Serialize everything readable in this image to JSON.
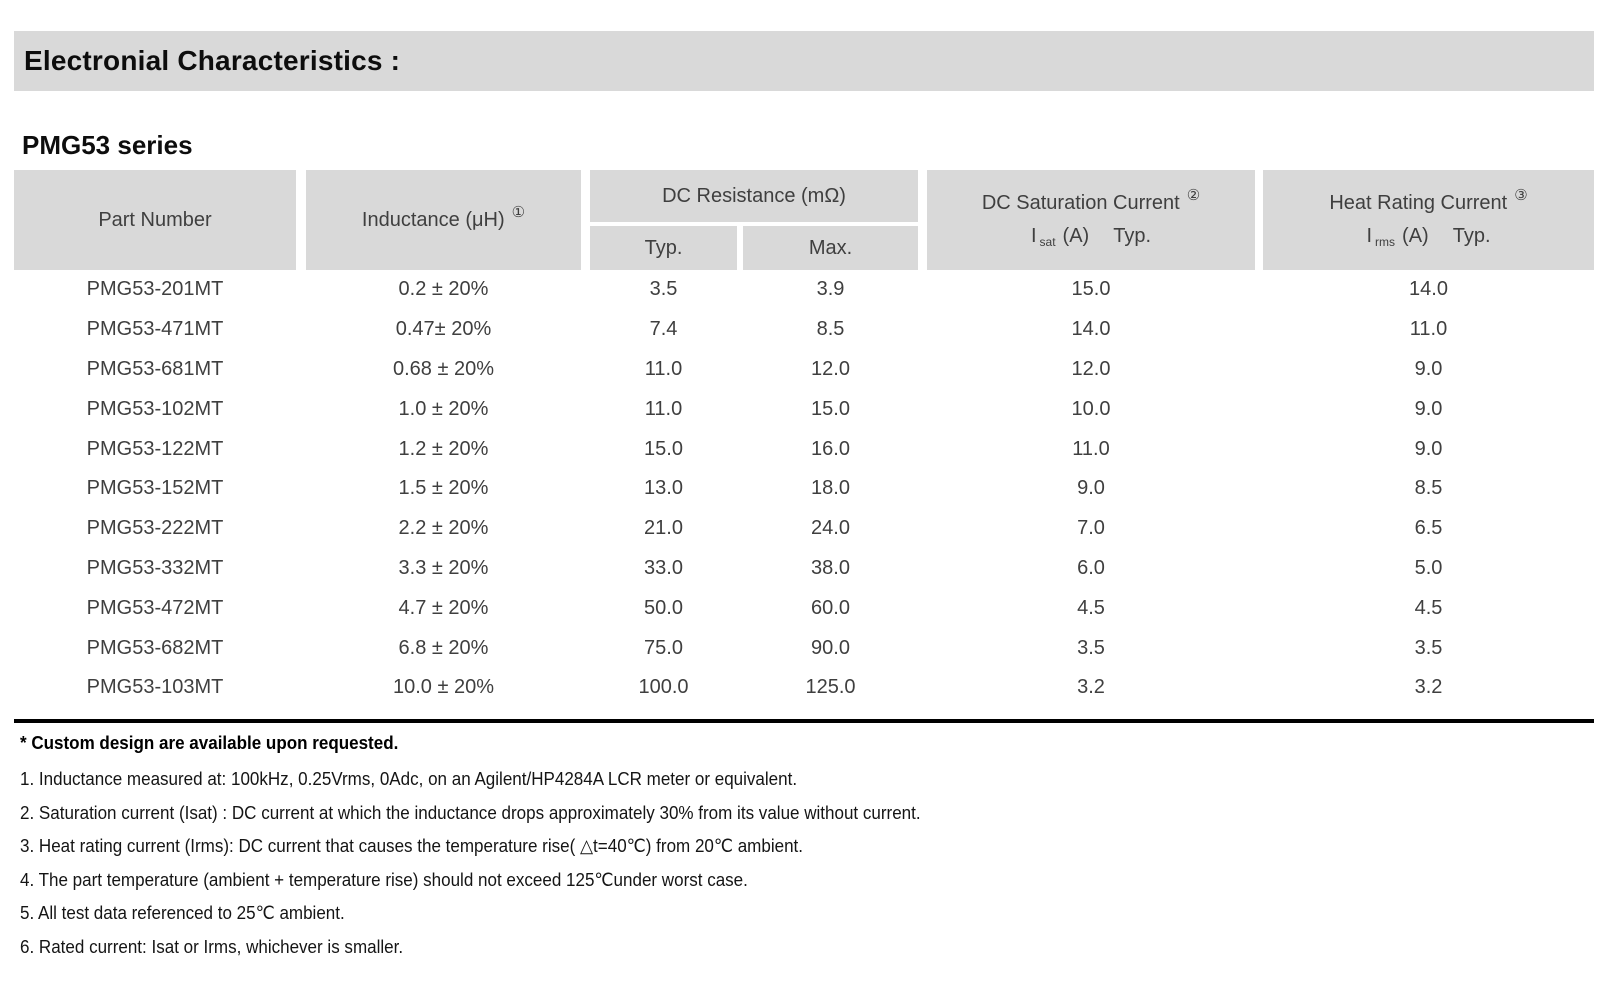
{
  "page": {
    "section_title": "Electronial Characteristics :",
    "series_title": "PMG53 series"
  },
  "colors": {
    "banner_fill": "#d9d9d9",
    "header_fill": "#d9d9d9",
    "text_dark": "#3f3f3f",
    "rule": "#000000"
  },
  "table": {
    "header": {
      "part_number": "Part Number",
      "inductance": {
        "label": "Inductance (μH)",
        "note_ref": "①"
      },
      "dc_resistance": {
        "label": "DC Resistance (mΩ)",
        "typ": "Typ.",
        "max": "Max."
      },
      "dc_saturation": {
        "label": "DC Saturation Current",
        "note_ref": "②",
        "symbol": "I",
        "subscript": "sat",
        "unit": "(A)",
        "qualifier": "Typ."
      },
      "heat_rating": {
        "label": "Heat Rating Current",
        "note_ref": "③",
        "symbol": "I",
        "subscript": "rms",
        "unit": "(A)",
        "qualifier": "Typ."
      }
    },
    "rows": [
      {
        "part_number": "PMG53-201MT",
        "inductance": "0.2 ± 20%",
        "dcr_typ": "3.5",
        "dcr_max": "3.9",
        "isat": "15.0",
        "irms": "14.0"
      },
      {
        "part_number": "PMG53-471MT",
        "inductance": "0.47± 20%",
        "dcr_typ": "7.4",
        "dcr_max": "8.5",
        "isat": "14.0",
        "irms": "11.0"
      },
      {
        "part_number": "PMG53-681MT",
        "inductance": "0.68 ± 20%",
        "dcr_typ": "11.0",
        "dcr_max": "12.0",
        "isat": "12.0",
        "irms": "9.0"
      },
      {
        "part_number": "PMG53-102MT",
        "inductance": "1.0 ± 20%",
        "dcr_typ": "11.0",
        "dcr_max": "15.0",
        "isat": "10.0",
        "irms": "9.0"
      },
      {
        "part_number": "PMG53-122MT",
        "inductance": "1.2 ± 20%",
        "dcr_typ": "15.0",
        "dcr_max": "16.0",
        "isat": "11.0",
        "irms": "9.0"
      },
      {
        "part_number": "PMG53-152MT",
        "inductance": "1.5 ± 20%",
        "dcr_typ": "13.0",
        "dcr_max": "18.0",
        "isat": "9.0",
        "irms": "8.5"
      },
      {
        "part_number": "PMG53-222MT",
        "inductance": "2.2 ± 20%",
        "dcr_typ": "21.0",
        "dcr_max": "24.0",
        "isat": "7.0",
        "irms": "6.5"
      },
      {
        "part_number": "PMG53-332MT",
        "inductance": "3.3 ± 20%",
        "dcr_typ": "33.0",
        "dcr_max": "38.0",
        "isat": "6.0",
        "irms": "5.0"
      },
      {
        "part_number": "PMG53-472MT",
        "inductance": "4.7 ± 20%",
        "dcr_typ": "50.0",
        "dcr_max": "60.0",
        "isat": "4.5",
        "irms": "4.5"
      },
      {
        "part_number": "PMG53-682MT",
        "inductance": "6.8 ± 20%",
        "dcr_typ": "75.0",
        "dcr_max": "90.0",
        "isat": "3.5",
        "irms": "3.5"
      },
      {
        "part_number": "PMG53-103MT",
        "inductance": "10.0 ± 20%",
        "dcr_typ": "100.0",
        "dcr_max": "125.0",
        "isat": "3.2",
        "irms": "3.2"
      }
    ]
  },
  "notes": {
    "custom_design": "* Custom design are available upon requested.",
    "items": [
      "1. Inductance measured at: 100kHz, 0.25Vrms, 0Adc, on an Agilent/HP4284A LCR meter or equivalent.",
      "2. Saturation current (Isat) : DC current at which the inductance drops approximately 30% from its value without current.",
      "3. Heat rating current (Irms): DC current that causes the temperature rise( △t=40℃) from 20℃ ambient.",
      "4. The part temperature (ambient + temperature rise) should not exceed 125℃under worst case.",
      "5. All test data referenced to 25℃ ambient.",
      "6. Rated current: Isat or Irms, whichever is smaller."
    ]
  }
}
